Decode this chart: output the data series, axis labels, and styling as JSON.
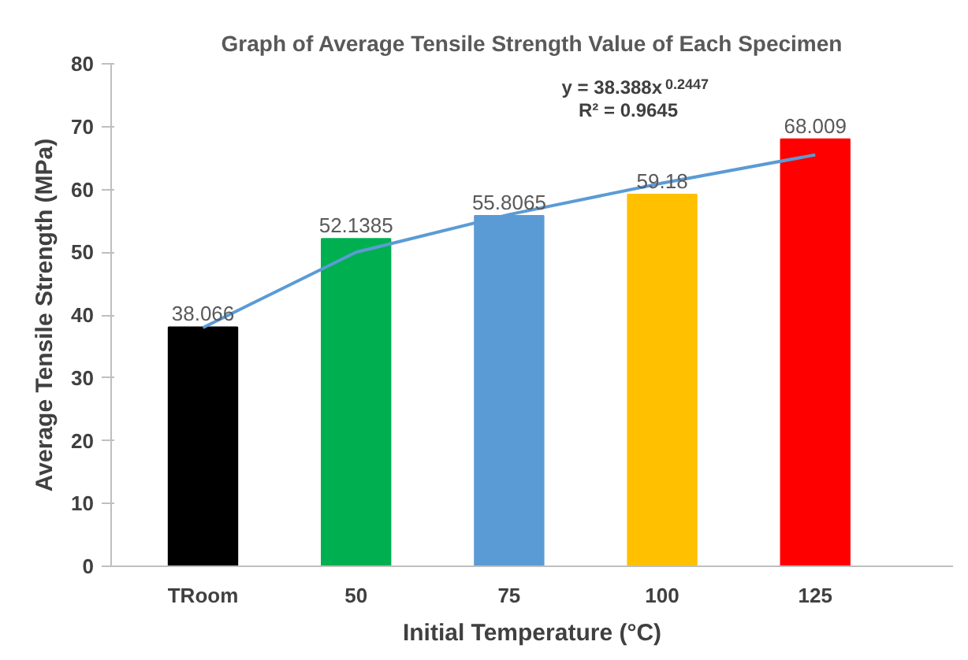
{
  "chart_data": {
    "type": "bar",
    "title": "Graph of Average Tensile Strength Value of Each Specimen",
    "xlabel": "Initial Temperature (°C)",
    "ylabel": "Average Tensile Strength (MPa)",
    "categories": [
      "TRoom",
      "50",
      "75",
      "100",
      "125"
    ],
    "series": [
      {
        "values": [
          38.066,
          52.1385,
          55.8065,
          59.18,
          68.009
        ],
        "value_labels": [
          "38.066",
          "52.1385",
          "55.8065",
          "59.18",
          "68.009"
        ],
        "colors": [
          "#000000",
          "#00b050",
          "#5b9bd5",
          "#ffc000",
          "#ff0000"
        ]
      },
      {
        "type": "line",
        "color": "#5b9bd5",
        "values": [
          38,
          50,
          56,
          61,
          65.5
        ]
      }
    ],
    "ylim": [
      0,
      80
    ],
    "yticks": [
      0,
      10,
      20,
      30,
      40,
      50,
      60,
      70,
      80
    ],
    "annotations": [
      "y = 38.388x$^{0.2447}$",
      "R² = 0.9645"
    ]
  }
}
